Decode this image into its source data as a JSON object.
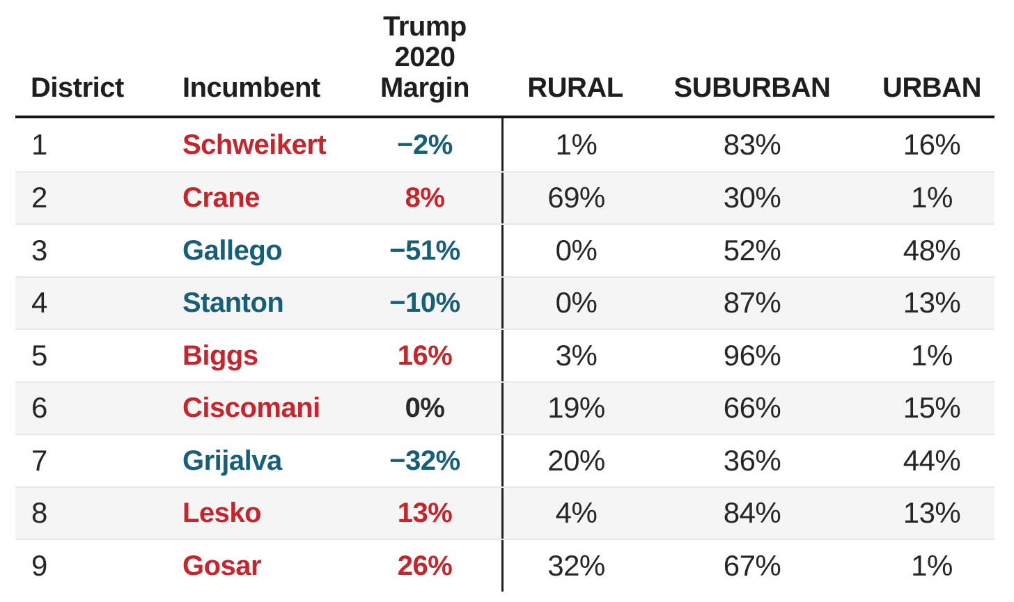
{
  "table": {
    "header": {
      "district": "District",
      "incumbent": "Incumbent",
      "margin": "Trump\n2020\nMargin",
      "rural": "RURAL",
      "suburban": "SUBURBAN",
      "urban": "URBAN"
    },
    "rows": [
      {
        "district": "1",
        "incumbent": "Schweikert",
        "incumbent_color": "rep",
        "margin": "−2%",
        "margin_color": "dem",
        "rural": "1%",
        "suburban": "83%",
        "urban": "16%"
      },
      {
        "district": "2",
        "incumbent": "Crane",
        "incumbent_color": "rep",
        "margin": "8%",
        "margin_color": "rep",
        "rural": "69%",
        "suburban": "30%",
        "urban": "1%"
      },
      {
        "district": "3",
        "incumbent": "Gallego",
        "incumbent_color": "dem",
        "margin": "−51%",
        "margin_color": "dem",
        "rural": "0%",
        "suburban": "52%",
        "urban": "48%"
      },
      {
        "district": "4",
        "incumbent": "Stanton",
        "incumbent_color": "dem",
        "margin": "−10%",
        "margin_color": "dem",
        "rural": "0%",
        "suburban": "87%",
        "urban": "13%"
      },
      {
        "district": "5",
        "incumbent": "Biggs",
        "incumbent_color": "rep",
        "margin": "16%",
        "margin_color": "rep",
        "rural": "3%",
        "suburban": "96%",
        "urban": "1%"
      },
      {
        "district": "6",
        "incumbent": "Ciscomani",
        "incumbent_color": "rep",
        "margin": "0%",
        "margin_color": "zero",
        "rural": "19%",
        "suburban": "66%",
        "urban": "15%"
      },
      {
        "district": "7",
        "incumbent": "Grijalva",
        "incumbent_color": "dem",
        "margin": "−32%",
        "margin_color": "dem",
        "rural": "20%",
        "suburban": "36%",
        "urban": "44%"
      },
      {
        "district": "8",
        "incumbent": "Lesko",
        "incumbent_color": "rep",
        "margin": "13%",
        "margin_color": "rep",
        "rural": "4%",
        "suburban": "84%",
        "urban": "13%"
      },
      {
        "district": "9",
        "incumbent": "Gosar",
        "incumbent_color": "rep",
        "margin": "26%",
        "margin_color": "rep",
        "rural": "32%",
        "suburban": "67%",
        "urban": "1%"
      }
    ]
  },
  "colors": {
    "rep": "#c7242b",
    "dem": "#175f78",
    "zero": "#2b2b2b",
    "text": "#262626",
    "rule": "#151515",
    "divider": "#1f1f1f",
    "stripe": "#f5f5f5",
    "row_border": "#e8e8e8"
  },
  "chart_data": {
    "type": "table",
    "columns": [
      "District",
      "Incumbent",
      "Trump 2020 Margin",
      "RURAL",
      "SUBURBAN",
      "URBAN"
    ],
    "rows": [
      [
        1,
        "Schweikert",
        "−2%",
        "1%",
        "83%",
        "16%"
      ],
      [
        2,
        "Crane",
        "8%",
        "69%",
        "30%",
        "1%"
      ],
      [
        3,
        "Gallego",
        "−51%",
        "0%",
        "52%",
        "48%"
      ],
      [
        4,
        "Stanton",
        "−10%",
        "0%",
        "87%",
        "13%"
      ],
      [
        5,
        "Biggs",
        "16%",
        "3%",
        "96%",
        "1%"
      ],
      [
        6,
        "Ciscomani",
        "0%",
        "19%",
        "66%",
        "15%"
      ],
      [
        7,
        "Grijalva",
        "−32%",
        "20%",
        "36%",
        "44%"
      ],
      [
        8,
        "Lesko",
        "13%",
        "4%",
        "84%",
        "13%"
      ],
      [
        9,
        "Gosar",
        "26%",
        "32%",
        "67%",
        "1%"
      ]
    ],
    "notes": {
      "incumbent_party_color": {
        "red": "Republican",
        "teal": "Democrat"
      },
      "margin_color_rule": "positive margins red, negative margins teal, zero dark gray",
      "layout": "thick rule under header; vertical divider between Margin and RURAL columns; alternating row stripes"
    }
  }
}
